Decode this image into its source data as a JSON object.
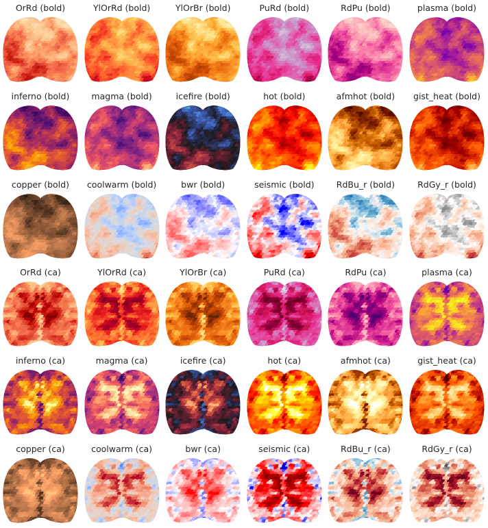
{
  "figure": {
    "panels": [
      {
        "title": "OrRd (bold)",
        "cmap": "OrRd",
        "pattern": "bold"
      },
      {
        "title": "YlOrRd (bold)",
        "cmap": "YlOrRd",
        "pattern": "bold"
      },
      {
        "title": "YlOrBr (bold)",
        "cmap": "YlOrBr",
        "pattern": "bold"
      },
      {
        "title": "PuRd (bold)",
        "cmap": "PuRd",
        "pattern": "bold"
      },
      {
        "title": "RdPu (bold)",
        "cmap": "RdPu",
        "pattern": "bold"
      },
      {
        "title": "plasma (bold)",
        "cmap": "plasma",
        "pattern": "bold"
      },
      {
        "title": "inferno (bold)",
        "cmap": "inferno",
        "pattern": "bold"
      },
      {
        "title": "magma (bold)",
        "cmap": "magma",
        "pattern": "bold"
      },
      {
        "title": "icefire (bold)",
        "cmap": "icefire",
        "pattern": "bold"
      },
      {
        "title": "hot (bold)",
        "cmap": "hot",
        "pattern": "bold"
      },
      {
        "title": "afmhot (bold)",
        "cmap": "afmhot",
        "pattern": "bold"
      },
      {
        "title": "gist_heat (bold)",
        "cmap": "gist_heat",
        "pattern": "bold"
      },
      {
        "title": "copper (bold)",
        "cmap": "copper",
        "pattern": "bold"
      },
      {
        "title": "coolwarm (bold)",
        "cmap": "coolwarm",
        "pattern": "bold"
      },
      {
        "title": "bwr (bold)",
        "cmap": "bwr",
        "pattern": "bold"
      },
      {
        "title": "seismic (bold)",
        "cmap": "seismic",
        "pattern": "bold"
      },
      {
        "title": "RdBu_r (bold)",
        "cmap": "RdBu_r",
        "pattern": "bold"
      },
      {
        "title": "RdGy_r (bold)",
        "cmap": "RdGy_r",
        "pattern": "bold"
      },
      {
        "title": "OrRd (ca)",
        "cmap": "OrRd",
        "pattern": "ca"
      },
      {
        "title": "YlOrRd (ca)",
        "cmap": "YlOrRd",
        "pattern": "ca"
      },
      {
        "title": "YlOrBr (ca)",
        "cmap": "YlOrBr",
        "pattern": "ca"
      },
      {
        "title": "PuRd (ca)",
        "cmap": "PuRd",
        "pattern": "ca"
      },
      {
        "title": "RdPu (ca)",
        "cmap": "RdPu",
        "pattern": "ca"
      },
      {
        "title": "plasma (ca)",
        "cmap": "plasma",
        "pattern": "ca"
      },
      {
        "title": "inferno (ca)",
        "cmap": "inferno",
        "pattern": "ca"
      },
      {
        "title": "magma (ca)",
        "cmap": "magma",
        "pattern": "ca"
      },
      {
        "title": "icefire (ca)",
        "cmap": "icefire",
        "pattern": "ca"
      },
      {
        "title": "hot (ca)",
        "cmap": "hot",
        "pattern": "ca"
      },
      {
        "title": "afmhot (ca)",
        "cmap": "afmhot",
        "pattern": "ca"
      },
      {
        "title": "gist_heat (ca)",
        "cmap": "gist_heat",
        "pattern": "ca"
      },
      {
        "title": "copper (ca)",
        "cmap": "copper",
        "pattern": "ca"
      },
      {
        "title": "coolwarm (ca)",
        "cmap": "coolwarm",
        "pattern": "ca"
      },
      {
        "title": "bwr (ca)",
        "cmap": "bwr",
        "pattern": "ca"
      },
      {
        "title": "seismic (ca)",
        "cmap": "seismic",
        "pattern": "ca"
      },
      {
        "title": "RdBu_r (ca)",
        "cmap": "RdBu_r",
        "pattern": "ca"
      },
      {
        "title": "RdGy_r (ca)",
        "cmap": "RdGy_r",
        "pattern": "ca"
      }
    ]
  },
  "colormaps": {
    "OrRd": [
      "#fff7ec",
      "#fee8c8",
      "#fdd49e",
      "#fdbb84",
      "#fc8d59",
      "#ef6548",
      "#d7301f",
      "#b30000",
      "#7f0000"
    ],
    "YlOrRd": [
      "#ffffcc",
      "#ffeda0",
      "#fed976",
      "#feb24c",
      "#fd8d3c",
      "#fc4e2a",
      "#e31a1c",
      "#bd0026",
      "#800026"
    ],
    "YlOrBr": [
      "#ffffe5",
      "#fff7bc",
      "#fee391",
      "#fec44f",
      "#fe9929",
      "#ec7014",
      "#cc4c02",
      "#993404",
      "#662506"
    ],
    "PuRd": [
      "#f7f4f9",
      "#e7e1ef",
      "#d4b9da",
      "#c994c7",
      "#df65b0",
      "#e7298a",
      "#ce1256",
      "#980043",
      "#67001f"
    ],
    "RdPu": [
      "#fff7f3",
      "#fde0dd",
      "#fcc5c0",
      "#fa9fb5",
      "#f768a1",
      "#dd3497",
      "#ae017e",
      "#7a0177",
      "#49006a"
    ],
    "plasma": [
      "#0d0887",
      "#46039f",
      "#7201a8",
      "#9c179e",
      "#bd3786",
      "#d8576b",
      "#ed7953",
      "#fb9f3a",
      "#fdca26",
      "#f0f921"
    ],
    "inferno": [
      "#000004",
      "#1b0c41",
      "#4a0c6b",
      "#781c6d",
      "#a52c60",
      "#cf4446",
      "#ed6925",
      "#fb9b06",
      "#f7d13d",
      "#fcffa4"
    ],
    "magma": [
      "#000004",
      "#180f3d",
      "#440f76",
      "#721f81",
      "#9e2f7f",
      "#cd4071",
      "#f1605d",
      "#fd9668",
      "#feca8d",
      "#fcfdbf"
    ],
    "icefire": [
      "#bde7f0",
      "#58a8d8",
      "#3f64c2",
      "#2e3a6b",
      "#1a1a1f",
      "#5e1f2e",
      "#a02d45",
      "#e0603a",
      "#f9b17a"
    ],
    "hot": [
      "#0b0000",
      "#4c0000",
      "#8e0000",
      "#d10000",
      "#ff1300",
      "#ff5600",
      "#ff9800",
      "#ffda00",
      "#ffff37",
      "#ffffff"
    ],
    "afmhot": [
      "#000000",
      "#330000",
      "#661400",
      "#993300",
      "#cc6600",
      "#ff9933",
      "#ffcc66",
      "#ffee99",
      "#ffffcc",
      "#ffffff"
    ],
    "gist_heat": [
      "#000000",
      "#3a0000",
      "#6e0000",
      "#a30000",
      "#d72500",
      "#ff5a00",
      "#ff8f1f",
      "#ffc45f",
      "#fff0b0"
    ],
    "copper": [
      "#000000",
      "#27180f",
      "#4e321f",
      "#764b2f",
      "#9d643f",
      "#c47d4f",
      "#eb965f",
      "#ffa56a",
      "#ffc77f"
    ],
    "coolwarm": [
      "#3b4cc0",
      "#6282ea",
      "#8db0fe",
      "#b8d0f9",
      "#dddcdc",
      "#f5c4ad",
      "#f49a7b",
      "#de604d",
      "#b40426"
    ],
    "bwr": [
      "#0000ff",
      "#4040ff",
      "#8080ff",
      "#c0c0ff",
      "#ffffff",
      "#ffc0c0",
      "#ff8080",
      "#ff4040",
      "#ff0000"
    ],
    "seismic": [
      "#00004c",
      "#0000a8",
      "#0000ff",
      "#8080ff",
      "#ffffff",
      "#ff8080",
      "#ff0000",
      "#c00000",
      "#800000"
    ],
    "RdBu_r": [
      "#053061",
      "#2166ac",
      "#4393c3",
      "#92c5de",
      "#f7f7f7",
      "#fddbc7",
      "#f4a582",
      "#d6604d",
      "#b2182b",
      "#67001f"
    ],
    "RdGy_r": [
      "#1a1a1a",
      "#4d4d4d",
      "#878787",
      "#bababa",
      "#ffffff",
      "#fddbc7",
      "#f4a582",
      "#d6604d",
      "#b2182b",
      "#67001f"
    ]
  }
}
